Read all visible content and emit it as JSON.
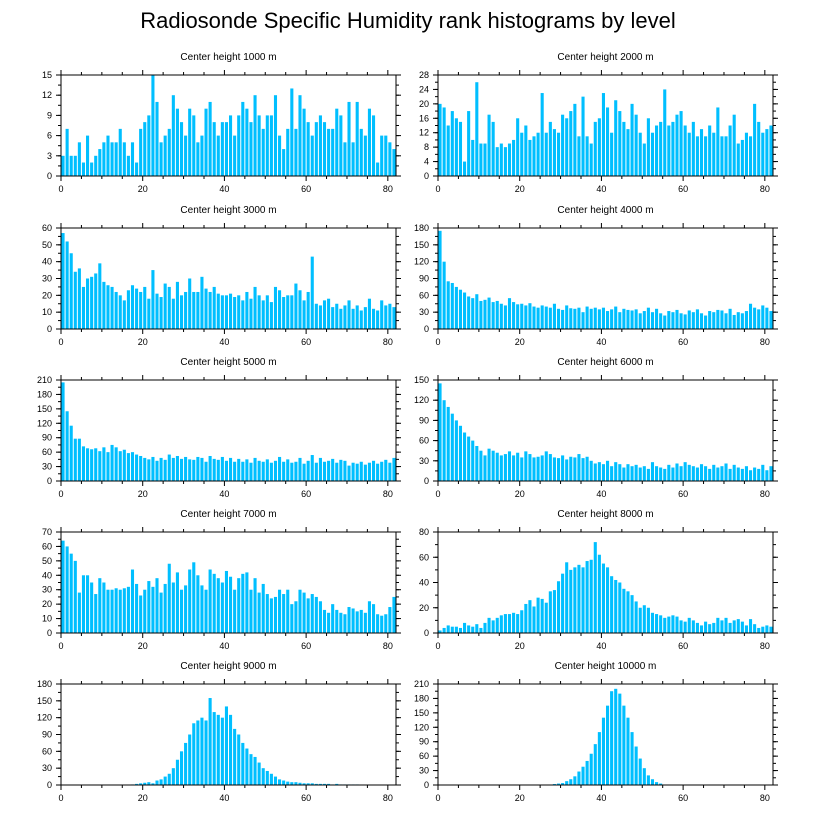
{
  "title": "Radiosonde Specific Humidity rank histograms by level",
  "colors": {
    "bar": "#00BFFF",
    "axis": "#000000",
    "background": "#ffffff"
  },
  "chart_data": [
    {
      "type": "bar",
      "title": "Center height 1000 m",
      "xlim": [
        0,
        82
      ],
      "ylim": [
        0,
        15
      ],
      "xticks": [
        0,
        20,
        40,
        60,
        80
      ],
      "yticks": [
        0,
        3,
        6,
        9,
        12,
        15
      ],
      "values": [
        3,
        7,
        3,
        3,
        5,
        2,
        6,
        2,
        3,
        4,
        5,
        6,
        5,
        5,
        7,
        5,
        3,
        5,
        2,
        7,
        8,
        9,
        15,
        11,
        5,
        6,
        7,
        12,
        10,
        8,
        6,
        10,
        9,
        5,
        6,
        10,
        11,
        8,
        6,
        8,
        8,
        9,
        6,
        9,
        11,
        10,
        8,
        12,
        9,
        7,
        9,
        9,
        12,
        6,
        4,
        7,
        13,
        7,
        12,
        10,
        8,
        6,
        8,
        9,
        8,
        7,
        7,
        10,
        9,
        5,
        11,
        5,
        11,
        7,
        6,
        10,
        9,
        2,
        6,
        6,
        5,
        4
      ]
    },
    {
      "type": "bar",
      "title": "Center height 2000 m",
      "xlim": [
        0,
        82
      ],
      "ylim": [
        0,
        28
      ],
      "xticks": [
        0,
        20,
        40,
        60,
        80
      ],
      "yticks": [
        0,
        4,
        8,
        12,
        16,
        20,
        24,
        28
      ],
      "values": [
        20,
        19,
        14,
        18,
        16,
        15,
        4,
        18,
        10,
        26,
        9,
        9,
        17,
        15,
        8,
        9,
        8,
        9,
        10,
        16,
        12,
        14,
        10,
        11,
        12,
        23,
        12,
        15,
        13,
        12,
        17,
        16,
        18,
        20,
        11,
        22,
        11,
        9,
        15,
        16,
        23,
        19,
        12,
        21,
        18,
        15,
        13,
        20,
        17,
        12,
        9,
        16,
        12,
        14,
        15,
        24,
        14,
        15,
        17,
        18,
        14,
        12,
        15,
        11,
        13,
        11,
        14,
        12,
        19,
        11,
        11,
        14,
        17,
        9,
        10,
        12,
        11,
        20,
        15,
        12,
        13,
        14
      ]
    },
    {
      "type": "bar",
      "title": "Center height 3000 m",
      "xlim": [
        0,
        82
      ],
      "ylim": [
        0,
        60
      ],
      "xticks": [
        0,
        20,
        40,
        60,
        80
      ],
      "yticks": [
        0,
        10,
        20,
        30,
        40,
        50,
        60
      ],
      "values": [
        57,
        52,
        45,
        34,
        36,
        25,
        30,
        31,
        33,
        39,
        28,
        26,
        25,
        22,
        20,
        17,
        23,
        26,
        24,
        22,
        25,
        18,
        35,
        21,
        19,
        27,
        25,
        18,
        28,
        20,
        22,
        30,
        22,
        22,
        31,
        24,
        22,
        25,
        21,
        20,
        20,
        21,
        19,
        20,
        17,
        22,
        18,
        25,
        20,
        17,
        20,
        16,
        25,
        23,
        19,
        20,
        20,
        27,
        23,
        17,
        22,
        43,
        15,
        14,
        17,
        18,
        13,
        15,
        12,
        14,
        17,
        12,
        14,
        11,
        13,
        18,
        12,
        11,
        17,
        14,
        15,
        13
      ]
    },
    {
      "type": "bar",
      "title": "Center height 4000 m",
      "xlim": [
        0,
        82
      ],
      "ylim": [
        0,
        180
      ],
      "xticks": [
        0,
        20,
        40,
        60,
        80
      ],
      "yticks": [
        0,
        30,
        60,
        90,
        120,
        150,
        180
      ],
      "values": [
        175,
        120,
        85,
        82,
        75,
        70,
        65,
        58,
        55,
        62,
        50,
        52,
        56,
        48,
        50,
        45,
        42,
        55,
        48,
        44,
        45,
        42,
        46,
        40,
        38,
        42,
        40,
        38,
        45,
        36,
        34,
        42,
        37,
        36,
        38,
        30,
        40,
        36,
        38,
        35,
        38,
        32,
        35,
        40,
        30,
        36,
        34,
        33,
        35,
        28,
        32,
        38,
        30,
        36,
        28,
        24,
        32,
        30,
        34,
        28,
        26,
        33,
        30,
        35,
        28,
        24,
        32,
        30,
        34,
        33,
        28,
        36,
        25,
        30,
        28,
        32,
        45,
        38,
        35,
        42,
        38,
        32
      ]
    },
    {
      "type": "bar",
      "title": "Center height 5000 m",
      "xlim": [
        0,
        82
      ],
      "ylim": [
        0,
        210
      ],
      "xticks": [
        0,
        20,
        40,
        60,
        80
      ],
      "yticks": [
        0,
        30,
        60,
        90,
        120,
        150,
        180,
        210
      ],
      "values": [
        205,
        145,
        115,
        88,
        88,
        72,
        68,
        66,
        68,
        62,
        70,
        60,
        75,
        70,
        62,
        65,
        58,
        60,
        55,
        52,
        48,
        45,
        50,
        42,
        48,
        44,
        55,
        48,
        52,
        46,
        50,
        45,
        44,
        50,
        48,
        40,
        52,
        46,
        44,
        50,
        42,
        48,
        40,
        46,
        40,
        45,
        38,
        48,
        42,
        40,
        45,
        38,
        42,
        50,
        40,
        45,
        38,
        40,
        48,
        36,
        42,
        54,
        38,
        48,
        40,
        42,
        46,
        38,
        44,
        42,
        32,
        38,
        36,
        40,
        34,
        38,
        42,
        36,
        40,
        44,
        38,
        48
      ]
    },
    {
      "type": "bar",
      "title": "Center height 6000 m",
      "xlim": [
        0,
        82
      ],
      "ylim": [
        0,
        150
      ],
      "xticks": [
        0,
        20,
        40,
        60,
        80
      ],
      "yticks": [
        0,
        30,
        60,
        90,
        120,
        150
      ],
      "values": [
        145,
        120,
        110,
        100,
        90,
        82,
        72,
        66,
        60,
        52,
        45,
        38,
        48,
        45,
        42,
        38,
        40,
        44,
        38,
        42,
        35,
        44,
        40,
        35,
        36,
        38,
        44,
        40,
        35,
        34,
        38,
        32,
        36,
        35,
        40,
        34,
        36,
        30,
        26,
        28,
        25,
        30,
        22,
        28,
        25,
        20,
        25,
        22,
        24,
        20,
        22,
        18,
        28,
        22,
        20,
        18,
        24,
        20,
        26,
        22,
        28,
        24,
        22,
        20,
        25,
        22,
        18,
        24,
        20,
        22,
        26,
        18,
        24,
        20,
        18,
        22,
        16,
        20,
        18,
        24,
        16,
        22
      ]
    },
    {
      "type": "bar",
      "title": "Center height 7000 m",
      "xlim": [
        0,
        82
      ],
      "ylim": [
        0,
        70
      ],
      "xticks": [
        0,
        20,
        40,
        60,
        80
      ],
      "yticks": [
        0,
        10,
        20,
        30,
        40,
        50,
        60,
        70
      ],
      "values": [
        64,
        60,
        55,
        50,
        28,
        40,
        40,
        35,
        27,
        38,
        35,
        30,
        30,
        31,
        30,
        31,
        32,
        44,
        34,
        26,
        30,
        36,
        32,
        38,
        28,
        34,
        48,
        35,
        42,
        30,
        33,
        44,
        49,
        40,
        33,
        30,
        44,
        41,
        38,
        35,
        43,
        39,
        30,
        38,
        41,
        42,
        30,
        38,
        28,
        34,
        27,
        24,
        25,
        30,
        27,
        30,
        20,
        22,
        30,
        28,
        24,
        27,
        25,
        22,
        16,
        14,
        20,
        16,
        14,
        13,
        18,
        17,
        15,
        16,
        14,
        22,
        20,
        13,
        12,
        13,
        18,
        25
      ]
    },
    {
      "type": "bar",
      "title": "Center height 8000 m",
      "xlim": [
        0,
        82
      ],
      "ylim": [
        0,
        80
      ],
      "xticks": [
        0,
        20,
        40,
        60,
        80
      ],
      "yticks": [
        0,
        20,
        40,
        60,
        80
      ],
      "values": [
        2,
        4,
        6,
        5,
        5,
        4,
        8,
        6,
        5,
        7,
        4,
        8,
        12,
        10,
        12,
        14,
        15,
        15,
        16,
        15,
        18,
        23,
        26,
        21,
        28,
        27,
        24,
        33,
        34,
        41,
        47,
        56,
        50,
        52,
        54,
        52,
        57,
        58,
        72,
        62,
        55,
        52,
        45,
        42,
        40,
        35,
        33,
        30,
        25,
        20,
        22,
        20,
        16,
        15,
        14,
        12,
        13,
        14,
        13,
        10,
        9,
        12,
        10,
        8,
        6,
        9,
        7,
        8,
        12,
        10,
        12,
        8,
        10,
        11,
        9,
        6,
        11,
        7,
        4,
        5,
        6,
        5
      ]
    },
    {
      "type": "bar",
      "title": "Center height 9000 m",
      "xlim": [
        0,
        82
      ],
      "ylim": [
        0,
        180
      ],
      "xticks": [
        0,
        20,
        40,
        60,
        80
      ],
      "yticks": [
        0,
        30,
        60,
        90,
        120,
        150,
        180
      ],
      "values": [
        0,
        0,
        0,
        0,
        0,
        0,
        0,
        0,
        0,
        0,
        0,
        0,
        0,
        0,
        0,
        0,
        0,
        1,
        2,
        3,
        4,
        5,
        3,
        8,
        10,
        15,
        20,
        30,
        45,
        60,
        75,
        90,
        110,
        115,
        120,
        115,
        155,
        130,
        125,
        120,
        140,
        125,
        100,
        90,
        75,
        65,
        55,
        50,
        40,
        30,
        25,
        20,
        15,
        10,
        8,
        6,
        5,
        5,
        4,
        3,
        3,
        3,
        2,
        2,
        2,
        2,
        1,
        2,
        1,
        1,
        1,
        1,
        1,
        0,
        0,
        0,
        0,
        0,
        0,
        0,
        0,
        0
      ]
    },
    {
      "type": "bar",
      "title": "Center height 10000 m",
      "xlim": [
        0,
        82
      ],
      "ylim": [
        0,
        210
      ],
      "xticks": [
        0,
        20,
        40,
        60,
        80
      ],
      "yticks": [
        0,
        30,
        60,
        90,
        120,
        150,
        180,
        210
      ],
      "values": [
        0,
        0,
        0,
        0,
        0,
        0,
        0,
        0,
        0,
        0,
        0,
        0,
        0,
        0,
        0,
        0,
        0,
        0,
        0,
        0,
        0,
        0,
        0,
        0,
        0,
        0,
        0,
        1,
        2,
        3,
        4,
        8,
        12,
        18,
        28,
        38,
        50,
        65,
        85,
        110,
        140,
        165,
        195,
        200,
        190,
        165,
        140,
        110,
        80,
        55,
        35,
        20,
        12,
        6,
        3,
        1,
        0,
        0,
        0,
        0,
        0,
        0,
        0,
        0,
        0,
        0,
        0,
        0,
        0,
        0,
        0,
        0,
        0,
        0,
        0,
        0,
        0,
        0,
        0,
        0,
        0,
        0
      ]
    }
  ]
}
